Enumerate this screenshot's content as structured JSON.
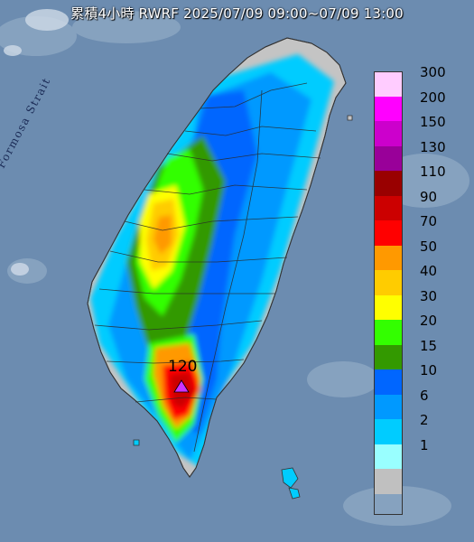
{
  "title": "累積4小時 RWRF 2025/07/09 09:00~07/09 13:00",
  "sea_label": "Formosa Strait",
  "max_marker": {
    "value_label": "120",
    "marker": "triangle-icon",
    "color": "#cc33ff"
  },
  "legend": {
    "rows": [
      {
        "label": "300",
        "color": "#ffccff"
      },
      {
        "label": "200",
        "color": "#ff00ff"
      },
      {
        "label": "150",
        "color": "#cc00cc"
      },
      {
        "label": "130",
        "color": "#990099"
      },
      {
        "label": "110",
        "color": "#990000"
      },
      {
        "label": "90",
        "color": "#cc0000"
      },
      {
        "label": "70",
        "color": "#ff0000"
      },
      {
        "label": "50",
        "color": "#ff9900"
      },
      {
        "label": "40",
        "color": "#ffcc00"
      },
      {
        "label": "30",
        "color": "#ffff00"
      },
      {
        "label": "20",
        "color": "#33ff00"
      },
      {
        "label": "15",
        "color": "#339900"
      },
      {
        "label": "10",
        "color": "#0066ff"
      },
      {
        "label": "6",
        "color": "#0099ff"
      },
      {
        "label": "2",
        "color": "#00ccff"
      },
      {
        "label": "1",
        "color": "#99ffff"
      },
      {
        "label": "",
        "color": "#c0c0c0"
      }
    ]
  }
}
